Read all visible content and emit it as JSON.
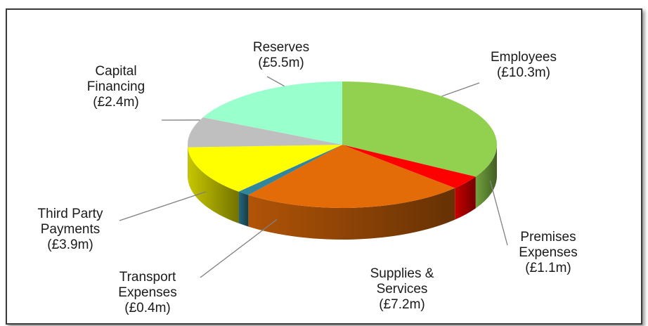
{
  "chart_data": {
    "type": "pie",
    "style": "3d-exploded-none",
    "title": "",
    "unit": "£m",
    "slices": [
      {
        "name": "Employees",
        "name_lines": [
          "Employees"
        ],
        "label": "(£10.3m)",
        "value": 10.3,
        "color": "#92d050"
      },
      {
        "name": "Premises Expenses",
        "name_lines": [
          "Premises",
          "Expenses"
        ],
        "label": "(£1.1m)",
        "value": 1.1,
        "color": "#ff0000"
      },
      {
        "name": "Supplies & Services",
        "name_lines": [
          "Supplies &",
          "Services"
        ],
        "label": "(£7.2m)",
        "value": 7.2,
        "color": "#e36c09"
      },
      {
        "name": "Transport Expenses",
        "name_lines": [
          "Transport",
          "Expenses"
        ],
        "label": "(£0.4m)",
        "value": 0.4,
        "color": "#31859c"
      },
      {
        "name": "Third Party Payments",
        "name_lines": [
          "Third Party",
          "Payments"
        ],
        "label": "(£3.9m)",
        "value": 3.9,
        "color": "#ffff00"
      },
      {
        "name": "Capital Financing",
        "name_lines": [
          "Capital",
          "Financing"
        ],
        "label": "(£2.4m)",
        "value": 2.4,
        "color": "#bfbfbf"
      },
      {
        "name": "Reserves",
        "name_lines": [
          "Reserves"
        ],
        "label": "(£5.5m)",
        "value": 5.5,
        "color": "#99ffcc"
      }
    ]
  }
}
